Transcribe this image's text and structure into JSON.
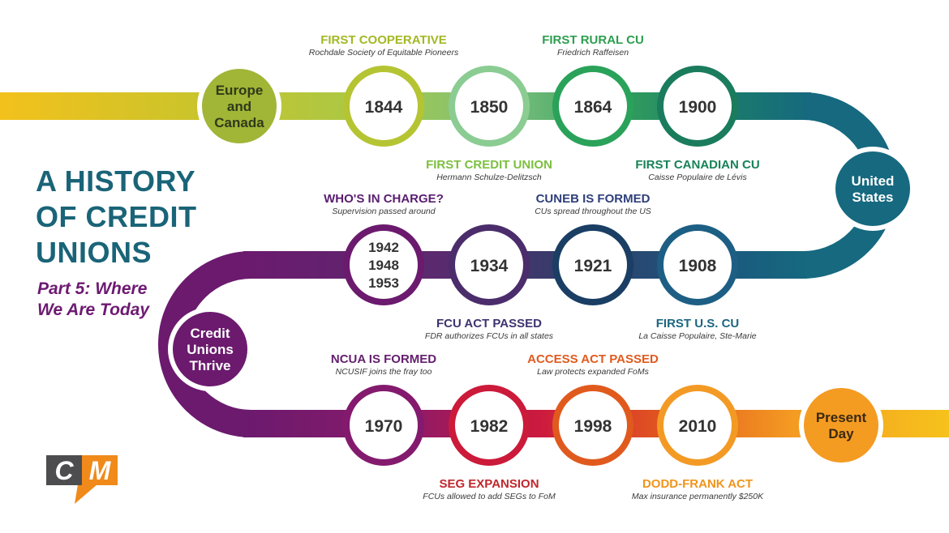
{
  "title_lines": [
    "A HISTORY",
    "OF CREDIT",
    "UNIONS"
  ],
  "subtitle_lines": [
    "Part 5: Where",
    "We Are Today"
  ],
  "logo_text": "CM",
  "hubs": [
    {
      "id": "europe",
      "lines": [
        "Europe",
        "and",
        "Canada"
      ],
      "fill": "#a1b537",
      "text_color": "#2f3a1a"
    },
    {
      "id": "us",
      "lines": [
        "United",
        "States"
      ],
      "fill": "#16697f",
      "text_color": "#ffffff"
    },
    {
      "id": "thrive",
      "lines": [
        "Credit",
        "Unions",
        "Thrive"
      ],
      "fill": "#6b1a6e",
      "text_color": "#ffffff"
    },
    {
      "id": "present",
      "lines": [
        "Present",
        "Day"
      ],
      "fill": "#f49b22",
      "text_color": "#3a2a10"
    }
  ],
  "milestones": [
    {
      "id": "m1844",
      "years": [
        "1844"
      ],
      "ring": "#b5c432",
      "label": "FIRST COOPERATIVE",
      "note": "Rochdale Society of Equitable Pioneers",
      "label_color": "#a3b824",
      "pos": "above"
    },
    {
      "id": "m1850",
      "years": [
        "1850"
      ],
      "ring": "#8bcc93",
      "label": "FIRST CREDIT UNION",
      "note": "Hermann Schulze-Delitzsch",
      "label_color": "#7cbf3e",
      "pos": "below"
    },
    {
      "id": "m1864",
      "years": [
        "1864"
      ],
      "ring": "#2aa25a",
      "label": "FIRST RURAL CU",
      "note": "Friedrich Raffeisen",
      "label_color": "#2e9e4f",
      "pos": "above"
    },
    {
      "id": "m1900",
      "years": [
        "1900"
      ],
      "ring": "#1a7c5c",
      "label": "FIRST CANADIAN CU",
      "note": "Caisse Populaire de Lévis",
      "label_color": "#178257",
      "pos": "below"
    },
    {
      "id": "m1908",
      "years": [
        "1908"
      ],
      "ring": "#1d5f84",
      "label": "FIRST U.S. CU",
      "note": "La Caisse Populaire, Ste-Marie",
      "label_color": "#1c6680",
      "pos": "below"
    },
    {
      "id": "m1921",
      "years": [
        "1921"
      ],
      "ring": "#1a3e64",
      "label": "CUNEB IS FORMED",
      "note": "CUs spread throughout the US",
      "label_color": "#2e3f7a",
      "pos": "above"
    },
    {
      "id": "m1934",
      "years": [
        "1934"
      ],
      "ring": "#4b2d6b",
      "label": "FCU ACT PASSED",
      "note": "FDR authorizes FCUs in all states",
      "label_color": "#3d3470",
      "pos": "below"
    },
    {
      "id": "m1942",
      "years": [
        "1942",
        "1948",
        "1953"
      ],
      "ring": "#6b1a6e",
      "label": "WHO'S IN CHARGE?",
      "note": "Supervision passed around",
      "label_color": "#5a1e70",
      "pos": "above"
    },
    {
      "id": "m1970",
      "years": [
        "1970"
      ],
      "ring": "#841a6e",
      "label": "NCUA IS FORMED",
      "note": "NCUSIF joins the fray too",
      "label_color": "#641e6e",
      "pos": "above"
    },
    {
      "id": "m1982",
      "years": [
        "1982"
      ],
      "ring": "#cc1a3a",
      "label": "SEG EXPANSION",
      "note": "FCUs allowed to add SEGs to FoM",
      "label_color": "#c1272d",
      "pos": "below"
    },
    {
      "id": "m1998",
      "years": [
        "1998"
      ],
      "ring": "#e05a1e",
      "label": "ACCESS ACT PASSED",
      "note": "Law protects expanded FoMs",
      "label_color": "#e05a1e",
      "pos": "above"
    },
    {
      "id": "m2010",
      "years": [
        "2010"
      ],
      "ring": "#f39a25",
      "label": "DODD-FRANK ACT",
      "note": "Max insurance permanently $250K",
      "label_color": "#f0941c",
      "pos": "below"
    }
  ]
}
